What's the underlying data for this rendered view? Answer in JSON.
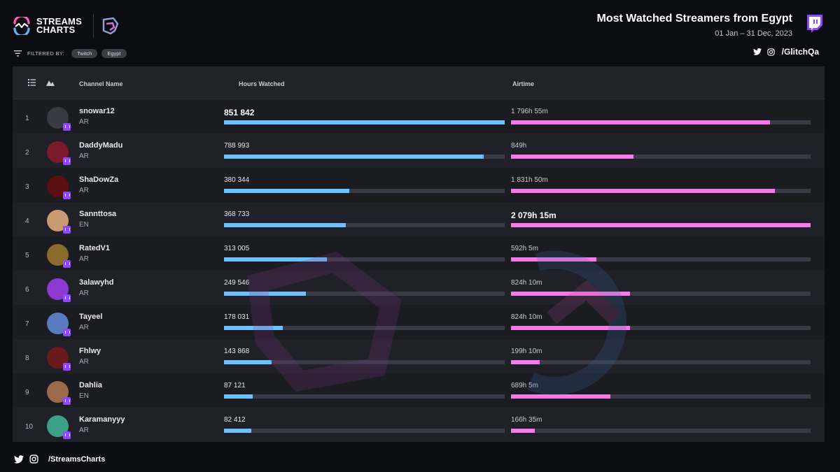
{
  "brand": {
    "line1": "STREAMS",
    "line2": "CHARTS"
  },
  "header": {
    "title": "Most Watched Streamers from Egypt",
    "date_range": "01 Jan – 31 Dec, 2023",
    "social_handle": "/GlitchQa"
  },
  "filters": {
    "label": "FILTERED BY:",
    "chips": [
      "Twitch",
      "Egypt"
    ]
  },
  "columns": {
    "channel": "Channel Name",
    "hours": "Hours Watched",
    "airtime": "Airtime"
  },
  "footer": {
    "social_handle": "/StreamsCharts"
  },
  "colors": {
    "hours_bar": "#6cc2ff",
    "airtime_bar": "#f879ea",
    "twitch": "#9147ff",
    "track": "#3a3a46"
  },
  "icons": [
    "list-icon",
    "trend-icon",
    "twitter-icon",
    "instagram-icon",
    "twitch-icon",
    "filter-icon"
  ],
  "chart_data": {
    "type": "table",
    "rows": [
      {
        "rank": "1",
        "name": "snowar12",
        "lang": "AR",
        "hours_label": "851 842",
        "hours": 851842,
        "airtime_label": "1 796h 55m",
        "airtime_min": 107815
      },
      {
        "rank": "2",
        "name": "DaddyMadu",
        "lang": "AR",
        "hours_label": "788 993",
        "hours": 788993,
        "airtime_label": "849h",
        "airtime_min": 50940
      },
      {
        "rank": "3",
        "name": "ShaDowZa",
        "lang": "AR",
        "hours_label": "380 344",
        "hours": 380344,
        "airtime_label": "1 831h 50m",
        "airtime_min": 109910
      },
      {
        "rank": "4",
        "name": "Sannttosa",
        "lang": "EN",
        "hours_label": "368 733",
        "hours": 368733,
        "airtime_label": "2 079h 15m",
        "airtime_min": 124755
      },
      {
        "rank": "5",
        "name": "RatedV1",
        "lang": "AR",
        "hours_label": "313 005",
        "hours": 313005,
        "airtime_label": "592h 5m",
        "airtime_min": 35525
      },
      {
        "rank": "6",
        "name": "3alawyhd",
        "lang": "AR",
        "hours_label": "249 546",
        "hours": 249546,
        "airtime_label": "824h 10m",
        "airtime_min": 49450
      },
      {
        "rank": "7",
        "name": "Tayeel",
        "lang": "AR",
        "hours_label": "178 031",
        "hours": 178031,
        "airtime_label": "824h 10m",
        "airtime_min": 49450
      },
      {
        "rank": "8",
        "name": "Fhlwy",
        "lang": "AR",
        "hours_label": "143 868",
        "hours": 143868,
        "airtime_label": "199h 10m",
        "airtime_min": 11950
      },
      {
        "rank": "9",
        "name": "Dahlia",
        "lang": "EN",
        "hours_label": "87 121",
        "hours": 87121,
        "airtime_label": "689h 5m",
        "airtime_min": 41345
      },
      {
        "rank": "10",
        "name": "Karamanyyy",
        "lang": "AR",
        "hours_label": "82 412",
        "hours": 82412,
        "airtime_label": "166h 35m",
        "airtime_min": 9995
      }
    ]
  }
}
